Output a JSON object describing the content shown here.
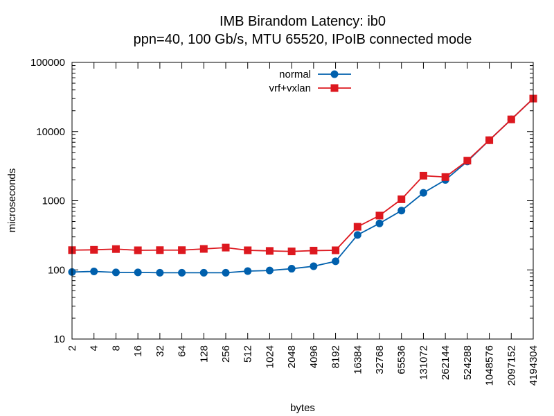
{
  "chart_data": {
    "type": "line",
    "title": [
      "IMB Birandom Latency: ib0",
      "ppn=40, 100 Gb/s, MTU 65520, IPoIB connected mode"
    ],
    "xlabel": "bytes",
    "ylabel": "microseconds",
    "x_scale": "log",
    "y_scale": "log",
    "ylim": [
      10,
      100000
    ],
    "y_ticks": [
      "10",
      "100",
      "1000",
      "10000",
      "100000"
    ],
    "x": [
      "2",
      "4",
      "8",
      "16",
      "32",
      "64",
      "128",
      "256",
      "512",
      "1024",
      "2048",
      "4096",
      "8192",
      "16384",
      "32768",
      "65536",
      "131072",
      "262144",
      "524288",
      "1048576",
      "2097152",
      "4194304"
    ],
    "legend_position": "top-center",
    "series": [
      {
        "name": "normal",
        "color": "#0060ad",
        "marker": "circle",
        "values": [
          93,
          95,
          92,
          92,
          91,
          91,
          91,
          91,
          96,
          98,
          104,
          113,
          133,
          320,
          470,
          720,
          1300,
          2000,
          3700,
          7500,
          15000,
          30000
        ]
      },
      {
        "name": "vrf+vxlan",
        "color": "#dd181f",
        "marker": "square",
        "values": [
          193,
          195,
          200,
          192,
          193,
          193,
          201,
          210,
          192,
          188,
          185,
          190,
          192,
          420,
          610,
          1050,
          2300,
          2200,
          3800,
          7500,
          15000,
          30000
        ]
      }
    ]
  }
}
